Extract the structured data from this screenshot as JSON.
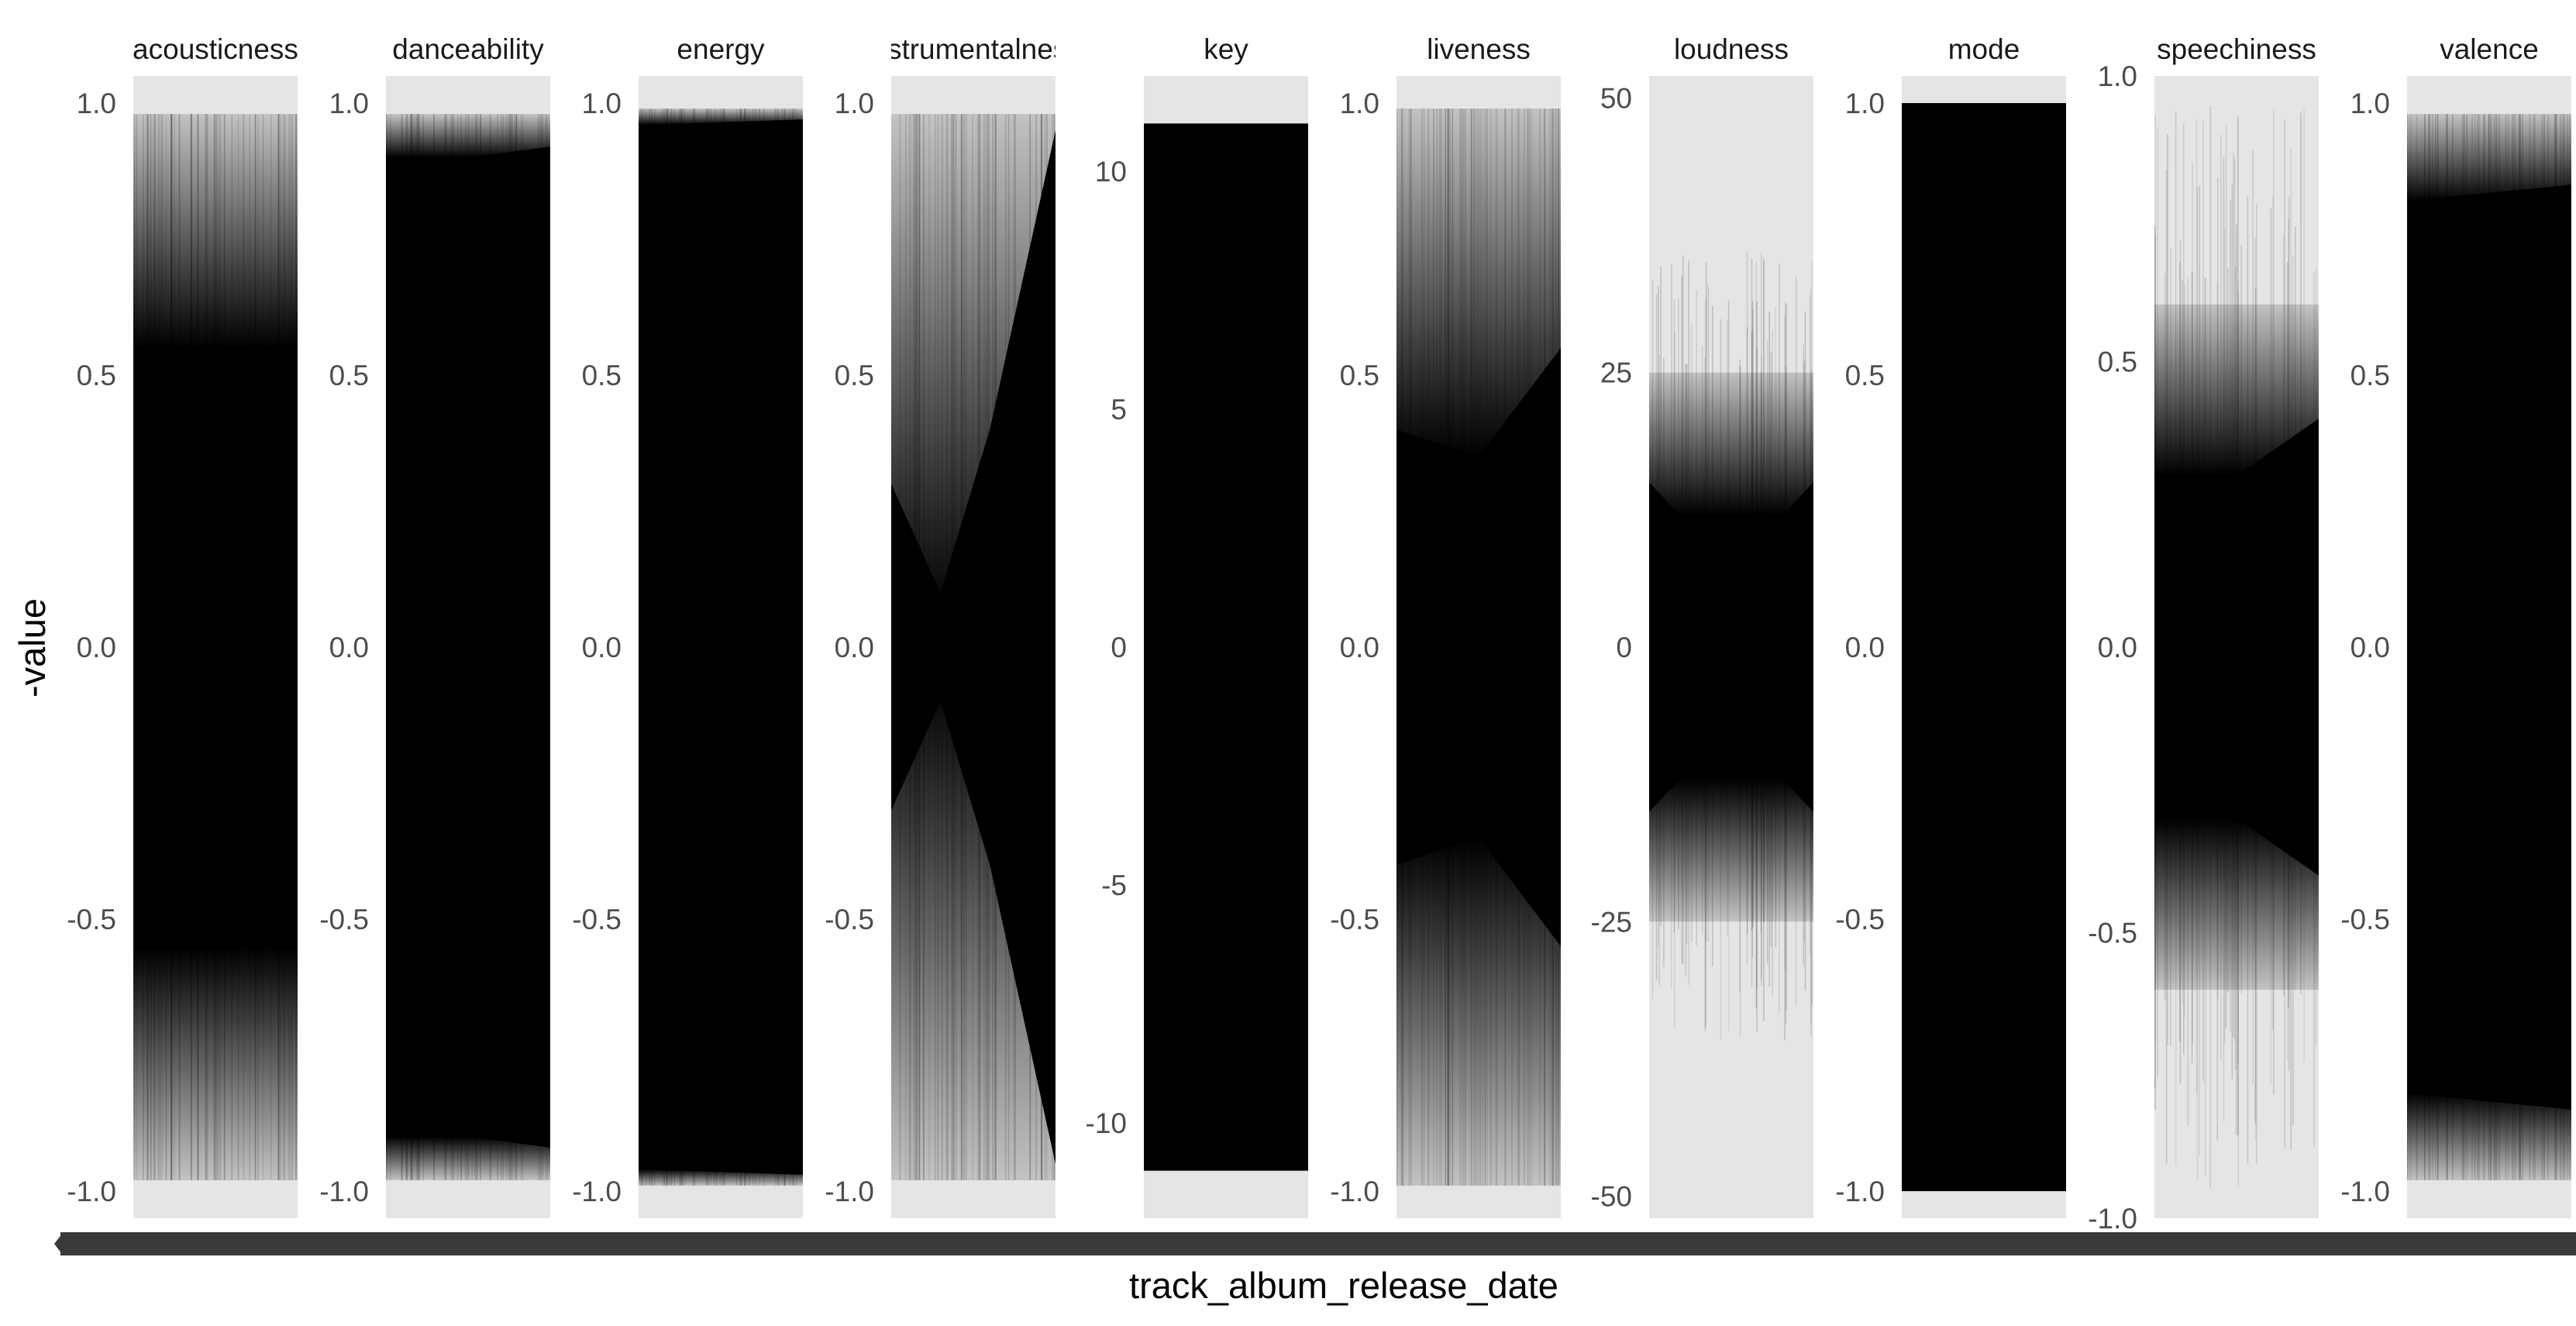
{
  "chart_data": {
    "type": "area",
    "xlabel": "track_album_release_date",
    "ylabel": "-value",
    "grid": false,
    "legend": "none",
    "colors": {
      "panel_bg": "#e5e5e5",
      "mark": "#000000",
      "x_axis_band": "#333333"
    },
    "facets": [
      {
        "name": "acousticness",
        "ylim": [
          -1.05,
          1.05
        ],
        "ticks": [
          1.0,
          0.5,
          0.0,
          -0.5,
          -1.0
        ],
        "tick_labels": [
          "1.0",
          "0.5",
          "0.0",
          "-0.5",
          "-1.0"
        ],
        "solid_range": [
          -0.55,
          0.55
        ],
        "fade_range": [
          -0.98,
          0.98
        ],
        "envelope_x": [
          0,
          0.25,
          0.5,
          0.75,
          1
        ],
        "envelope_upper": [
          0.55,
          0.5,
          0.5,
          0.5,
          0.55
        ],
        "envelope_lower": [
          -0.55,
          -0.5,
          -0.5,
          -0.5,
          -0.55
        ],
        "max_upper": 0.98,
        "max_lower": -0.98
      },
      {
        "name": "danceability",
        "ylim": [
          -1.05,
          1.05
        ],
        "ticks": [
          1.0,
          0.5,
          0.0,
          -0.5,
          -1.0
        ],
        "tick_labels": [
          "1.0",
          "0.5",
          "0.0",
          "-0.5",
          "-1.0"
        ],
        "solid_range": [
          -0.9,
          0.9
        ],
        "fade_range": [
          -0.98,
          0.98
        ],
        "envelope_x": [
          0,
          0.05,
          0.5,
          1
        ],
        "envelope_upper": [
          0.55,
          0.88,
          0.9,
          0.92
        ],
        "envelope_lower": [
          -0.55,
          -0.88,
          -0.9,
          -0.92
        ],
        "max_upper": 0.98,
        "max_lower": -0.98
      },
      {
        "name": "energy",
        "ylim": [
          -1.05,
          1.05
        ],
        "ticks": [
          1.0,
          0.5,
          0.0,
          -0.5,
          -1.0
        ],
        "tick_labels": [
          "1.0",
          "0.5",
          "0.0",
          "-0.5",
          "-1.0"
        ],
        "solid_range": [
          -0.96,
          0.96
        ],
        "fade_range": [
          -0.99,
          0.99
        ],
        "envelope_x": [
          0,
          1
        ],
        "envelope_upper": [
          0.96,
          0.97
        ],
        "envelope_lower": [
          -0.96,
          -0.97
        ],
        "max_upper": 0.99,
        "max_lower": -0.99
      },
      {
        "name": "instrumentalness",
        "ylim": [
          -1.05,
          1.05
        ],
        "ticks": [
          1.0,
          0.5,
          0.0,
          -0.5,
          -1.0
        ],
        "tick_labels": [
          "1.0",
          "0.5",
          "0.0",
          "-0.5",
          "-1.0"
        ],
        "solid_range": [
          -0.05,
          0.05
        ],
        "fade_range": [
          -0.98,
          0.98
        ],
        "envelope_x": [
          0,
          0.3,
          0.6,
          1
        ],
        "envelope_upper": [
          0.3,
          0.1,
          0.4,
          0.95
        ],
        "envelope_lower": [
          -0.3,
          -0.1,
          -0.4,
          -0.95
        ],
        "max_upper": 0.98,
        "max_lower": -0.98
      },
      {
        "name": "key",
        "ylim": [
          -12,
          12
        ],
        "ticks": [
          10,
          5,
          0,
          -5,
          -10
        ],
        "tick_labels": [
          "10",
          "5",
          "0",
          "-5",
          "-10"
        ],
        "solid_range": [
          -11,
          11
        ],
        "fade_range": [
          -11,
          11
        ],
        "envelope_x": [
          0,
          1
        ],
        "envelope_upper": [
          11,
          11
        ],
        "envelope_lower": [
          -11,
          -11
        ],
        "max_upper": 11,
        "max_lower": -11
      },
      {
        "name": "liveness",
        "ylim": [
          -1.05,
          1.05
        ],
        "ticks": [
          1.0,
          0.5,
          0.0,
          -0.5,
          -1.0
        ],
        "tick_labels": [
          "1.0",
          "0.5",
          "0.0",
          "-0.5",
          "-1.0"
        ],
        "solid_range": [
          -0.35,
          0.35
        ],
        "fade_range": [
          -0.99,
          0.99
        ],
        "envelope_x": [
          0,
          0.5,
          1
        ],
        "envelope_upper": [
          0.4,
          0.35,
          0.55
        ],
        "envelope_lower": [
          -0.4,
          -0.35,
          -0.55
        ],
        "max_upper": 0.99,
        "max_lower": -0.99
      },
      {
        "name": "loudness",
        "ylim": [
          -52,
          52
        ],
        "ticks": [
          50,
          25,
          0,
          -25,
          -50
        ],
        "tick_labels": [
          "50",
          "25",
          "0",
          "-25",
          "-50"
        ],
        "solid_range": [
          -12,
          12
        ],
        "fade_range": [
          -25,
          25
        ],
        "envelope_x": [
          0,
          0.25,
          0.5,
          0.75,
          1
        ],
        "envelope_upper": [
          15,
          11,
          10,
          11,
          15
        ],
        "envelope_lower": [
          -15,
          -11,
          -10,
          -11,
          -15
        ],
        "max_upper": 36,
        "max_lower": -36
      },
      {
        "name": "mode",
        "ylim": [
          -1.05,
          1.05
        ],
        "ticks": [
          1.0,
          0.5,
          0.0,
          -0.5,
          -1.0
        ],
        "tick_labels": [
          "1.0",
          "0.5",
          "0.0",
          "-0.5",
          "-1.0"
        ],
        "solid_range": [
          -1.0,
          1.0
        ],
        "fade_range": [
          -1.0,
          1.0
        ],
        "envelope_x": [
          0,
          1
        ],
        "envelope_upper": [
          1.0,
          1.0
        ],
        "envelope_lower": [
          -1.0,
          -1.0
        ],
        "max_upper": 1.0,
        "max_lower": -1.0
      },
      {
        "name": "speechiness",
        "ylim": [
          -1.0,
          1.0
        ],
        "ticks": [
          1.0,
          0.5,
          0.0,
          -0.5,
          -1.0
        ],
        "tick_labels": [
          "1.0",
          "0.5",
          "0.0",
          "-0.5",
          "-1.0"
        ],
        "solid_range": [
          -0.3,
          0.3
        ],
        "fade_range": [
          -0.6,
          0.6
        ],
        "envelope_x": [
          0,
          0.5,
          1
        ],
        "envelope_upper": [
          0.05,
          0.3,
          0.4
        ],
        "envelope_lower": [
          -0.05,
          -0.3,
          -0.4
        ],
        "max_upper": 0.95,
        "max_lower": -0.95
      },
      {
        "name": "valence",
        "ylim": [
          -1.05,
          1.05
        ],
        "ticks": [
          1.0,
          0.5,
          0.0,
          -0.5,
          -1.0
        ],
        "tick_labels": [
          "1.0",
          "0.5",
          "0.0",
          "-0.5",
          "-1.0"
        ],
        "solid_range": [
          -0.82,
          0.82
        ],
        "fade_range": [
          -0.98,
          0.98
        ],
        "envelope_x": [
          0,
          1
        ],
        "envelope_upper": [
          0.82,
          0.85
        ],
        "envelope_lower": [
          -0.82,
          -0.85
        ],
        "max_upper": 0.98,
        "max_lower": -0.98
      }
    ]
  }
}
